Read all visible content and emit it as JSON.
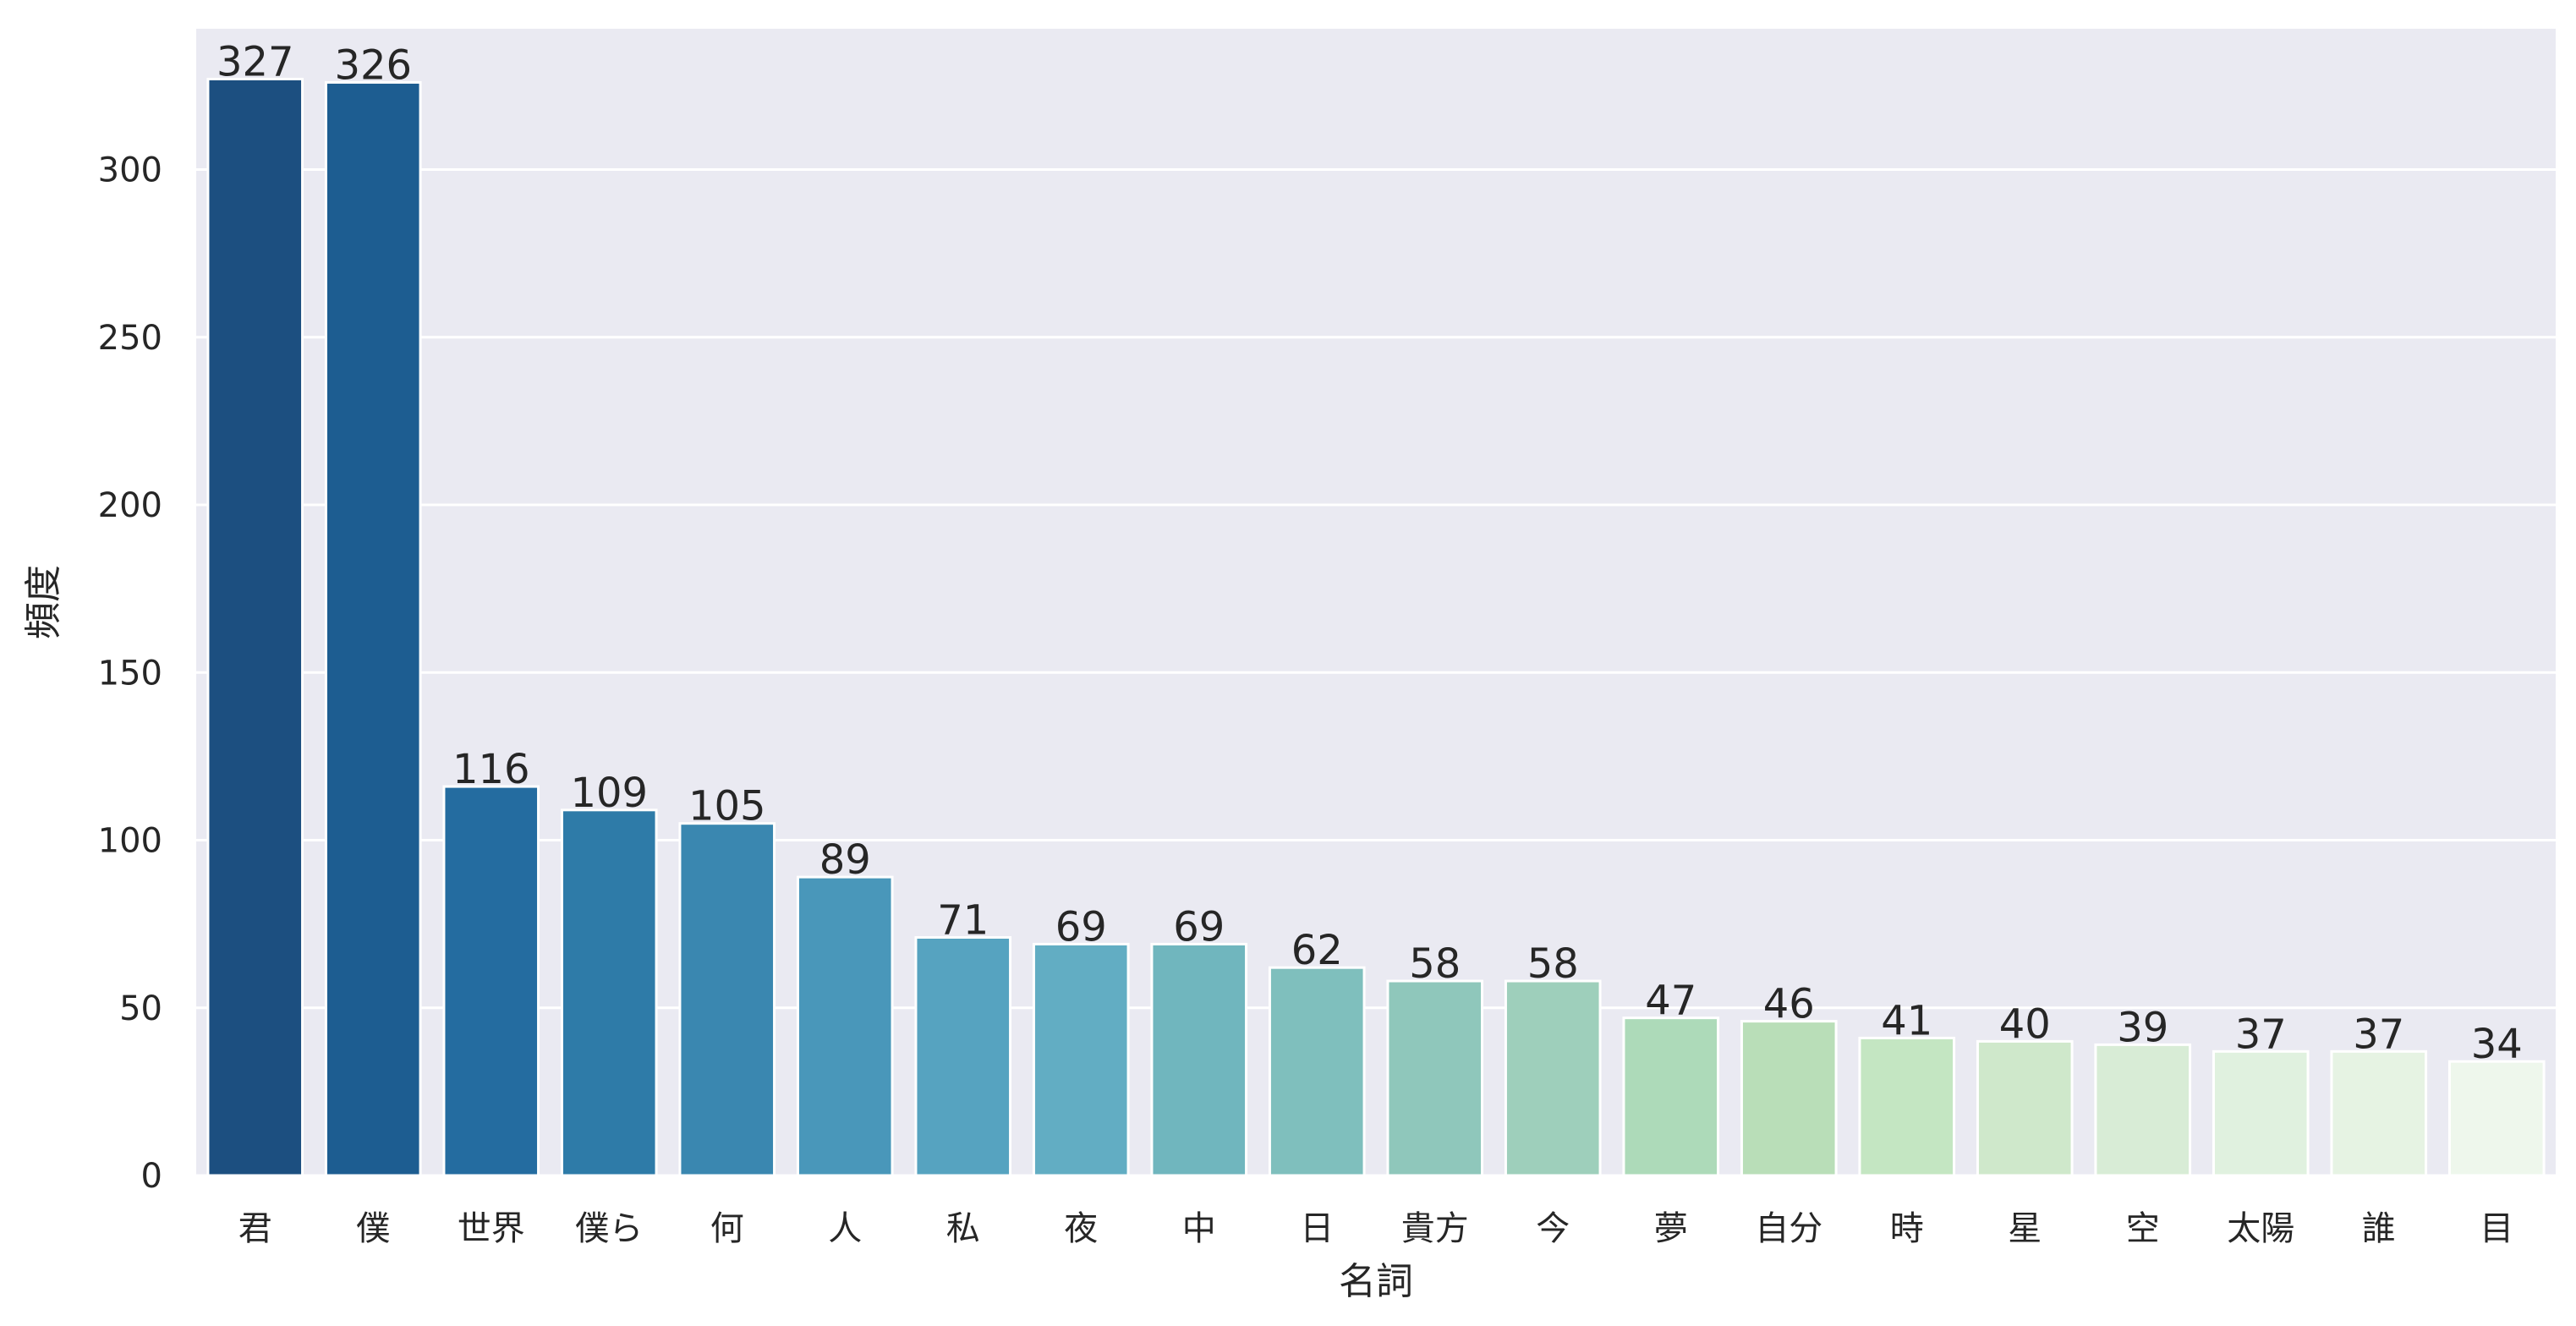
{
  "chart_data": {
    "type": "bar",
    "title": "",
    "xlabel": "名詞",
    "ylabel": "頻度",
    "ylim": [
      0,
      342
    ],
    "yticks": [
      0,
      50,
      100,
      150,
      200,
      250,
      300
    ],
    "grid": true,
    "categories": [
      "君",
      "僕",
      "世界",
      "僕ら",
      "何",
      "人",
      "私",
      "夜",
      "中",
      "日",
      "貴方",
      "今",
      "夢",
      "自分",
      "時",
      "星",
      "空",
      "太陽",
      "誰",
      "目"
    ],
    "values": [
      327,
      326,
      116,
      109,
      105,
      89,
      71,
      69,
      69,
      62,
      58,
      58,
      47,
      46,
      41,
      40,
      39,
      37,
      37,
      34
    ],
    "colors": [
      "#1c4f80",
      "#1d5d91",
      "#246ca0",
      "#2e7ba8",
      "#3a87b0",
      "#4997ba",
      "#56a3c0",
      "#62adc3",
      "#70b6be",
      "#7fbfbd",
      "#8fc7bb",
      "#9ecfbb",
      "#addab9",
      "#b9deb8",
      "#c4e6c2",
      "#cfe8cb",
      "#d8ecd6",
      "#e0f1df",
      "#e6f3e3",
      "#eef7ec"
    ],
    "background": "#eaeaf2",
    "grid_color": "#ffffff"
  }
}
